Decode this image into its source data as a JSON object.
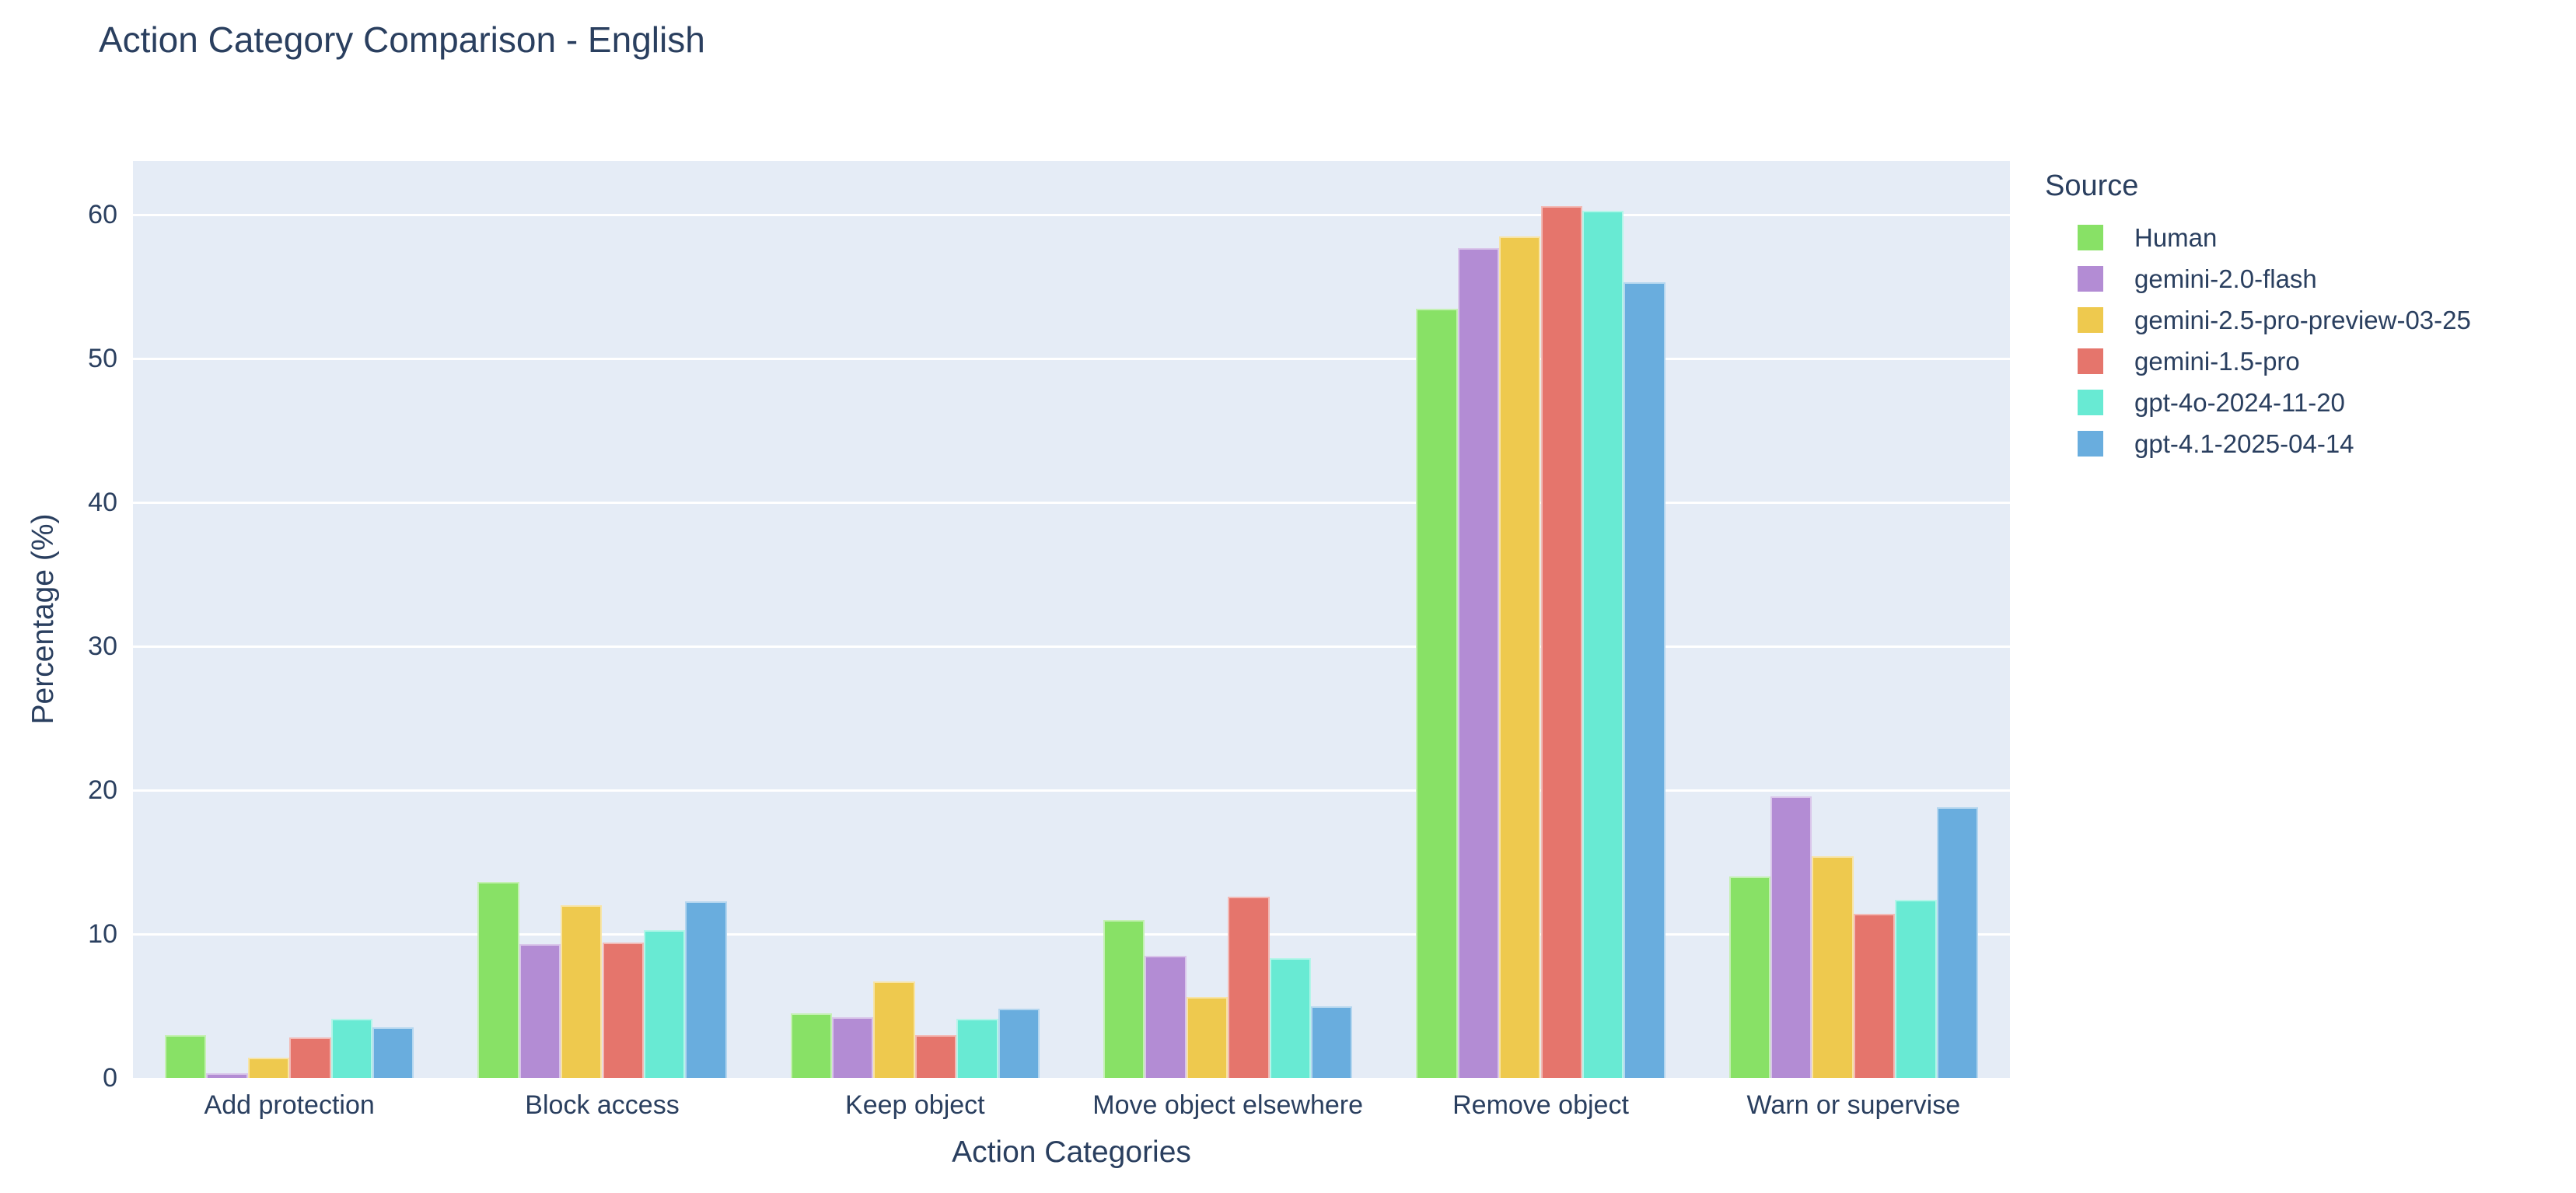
{
  "colors": {
    "background": "#FFFFFF",
    "plot_bg": "#E5ECF6",
    "grid": "#FFFFFF",
    "text": "#2A3F5F"
  },
  "chart_data": {
    "type": "bar",
    "title": "Action Category Comparison - English",
    "xlabel": "Action Categories",
    "ylabel": "Percentage (%)",
    "legend_title": "Source",
    "legend_position": "right-top",
    "grid": true,
    "barmode": "group",
    "ylim": [
      0,
      63.75
    ],
    "yticks": [
      0,
      10,
      20,
      30,
      40,
      50,
      60
    ],
    "categories": [
      "Add protection",
      "Block access",
      "Keep object",
      "Move object elsewhere",
      "Remove object",
      "Warn or supervise"
    ],
    "series": [
      {
        "name": "Human",
        "color": "#88E166",
        "values": [
          3.0,
          13.6,
          4.5,
          11.0,
          53.5,
          14.0
        ]
      },
      {
        "name": "gemini-2.0-flash",
        "color": "#B38CD4",
        "values": [
          0.3,
          9.3,
          4.2,
          8.5,
          57.7,
          19.6
        ]
      },
      {
        "name": "gemini-2.5-pro-preview-03-25",
        "color": "#EEC94E",
        "values": [
          1.4,
          12.0,
          6.7,
          5.6,
          58.5,
          15.4
        ]
      },
      {
        "name": "gemini-1.5-pro",
        "color": "#E5756C",
        "values": [
          2.8,
          9.4,
          3.0,
          12.6,
          60.6,
          11.4
        ]
      },
      {
        "name": "gpt-4o-2024-11-20",
        "color": "#68EAD3",
        "values": [
          4.1,
          10.3,
          4.1,
          8.3,
          60.3,
          12.4
        ]
      },
      {
        "name": "gpt-4.1-2025-04-14",
        "color": "#69ADDE",
        "values": [
          3.5,
          12.3,
          4.8,
          5.0,
          55.3,
          18.8
        ]
      }
    ]
  }
}
